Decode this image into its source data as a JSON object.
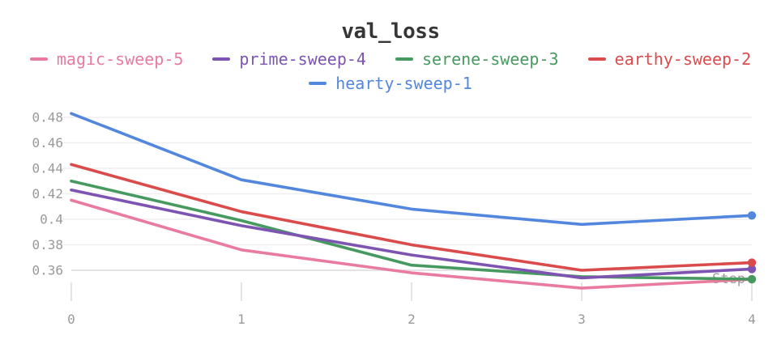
{
  "title": "val_loss",
  "legend": [
    {
      "label": "magic-sweep-5",
      "color": "#E87B9F"
    },
    {
      "label": "prime-sweep-4",
      "color": "#7D54B2"
    },
    {
      "label": "serene-sweep-3",
      "color": "#479A5F"
    },
    {
      "label": "earthy-sweep-2",
      "color": "#DA4C4C"
    },
    {
      "label": "hearty-sweep-1",
      "color": "#5387DD"
    }
  ],
  "chart_data": {
    "type": "line",
    "title": "val_loss",
    "xlabel": "Step",
    "ylabel": "",
    "x": [
      0,
      1,
      2,
      3,
      4
    ],
    "x_tick_labels": [
      "0",
      "1",
      "2",
      "3",
      "4"
    ],
    "y_ticks": [
      0.48,
      0.46,
      0.44,
      0.42,
      0.4,
      0.38,
      0.36
    ],
    "y_tick_labels": [
      "0.48",
      "0.46",
      "0.44",
      "0.42",
      "0.4",
      "0.38",
      "0.36"
    ],
    "ylim": [
      0.34,
      0.49
    ],
    "grid": "horizontal",
    "legend_position": "top",
    "marker": "endpoint-dot",
    "series": [
      {
        "name": "magic-sweep-5",
        "color": "#E87B9F",
        "values": [
          0.415,
          0.376,
          0.358,
          0.346,
          0.353
        ]
      },
      {
        "name": "serene-sweep-3",
        "color": "#479A5F",
        "values": [
          0.43,
          0.399,
          0.364,
          0.355,
          0.353
        ]
      },
      {
        "name": "prime-sweep-4",
        "color": "#7D54B2",
        "values": [
          0.423,
          0.395,
          0.372,
          0.354,
          0.361
        ]
      },
      {
        "name": "earthy-sweep-2",
        "color": "#DA4C4C",
        "values": [
          0.443,
          0.406,
          0.38,
          0.36,
          0.366
        ]
      },
      {
        "name": "hearty-sweep-1",
        "color": "#5387DD",
        "values": [
          0.483,
          0.431,
          0.408,
          0.396,
          0.403
        ]
      }
    ]
  }
}
